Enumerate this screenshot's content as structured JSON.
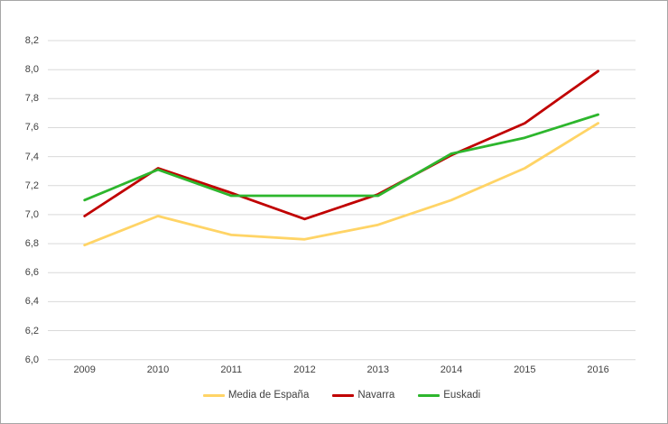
{
  "chart_data": {
    "type": "line",
    "title": "",
    "xlabel": "",
    "ylabel": "",
    "categories": [
      "2009",
      "2010",
      "2011",
      "2012",
      "2013",
      "2014",
      "2015",
      "2016"
    ],
    "series": [
      {
        "name": "Media de España",
        "color": "#FFD466",
        "values": [
          6.79,
          6.99,
          6.86,
          6.83,
          6.93,
          7.1,
          7.32,
          7.63
        ]
      },
      {
        "name": "Navarra",
        "color": "#C00000",
        "values": [
          6.99,
          7.32,
          7.15,
          6.97,
          7.14,
          7.41,
          7.63,
          7.99
        ]
      },
      {
        "name": "Euskadi",
        "color": "#2DB62D",
        "values": [
          7.1,
          7.31,
          7.13,
          7.13,
          7.13,
          7.42,
          7.53,
          7.69
        ]
      }
    ],
    "ylim": [
      6.0,
      8.2
    ],
    "ytick_step": 0.2,
    "ytick_labels": [
      "6,0",
      "6,2",
      "6,4",
      "6,6",
      "6,8",
      "7,0",
      "7,2",
      "7,4",
      "7,6",
      "7,8",
      "8,0",
      "8,2"
    ],
    "grid": true,
    "gridline_color": "#D9D9D9",
    "legend_position": "bottom",
    "decimal_style": "comma"
  }
}
